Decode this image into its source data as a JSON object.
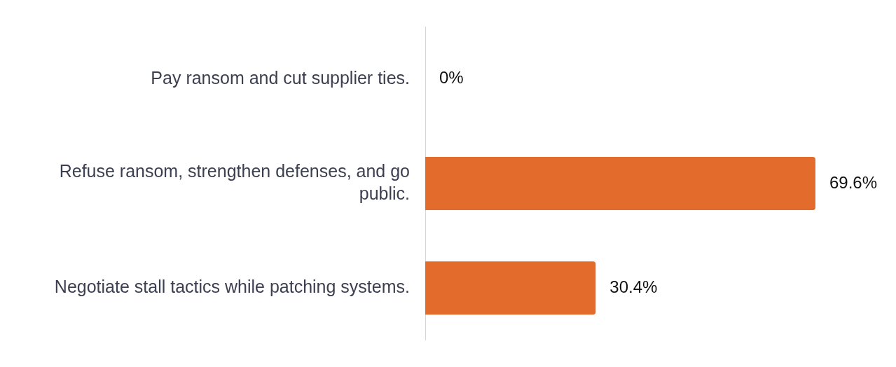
{
  "chart_data": {
    "type": "bar",
    "orientation": "horizontal",
    "categories": [
      "Pay ransom and cut supplier ties.",
      "Refuse ransom, strengthen defenses, and go public.",
      "Negotiate stall tactics while patching systems."
    ],
    "values": [
      0,
      69.6,
      30.4
    ],
    "color": "#e36b2c",
    "value_labels": [
      "0%",
      "69.6%",
      "30.4%"
    ],
    "grid": false,
    "legend": false
  }
}
